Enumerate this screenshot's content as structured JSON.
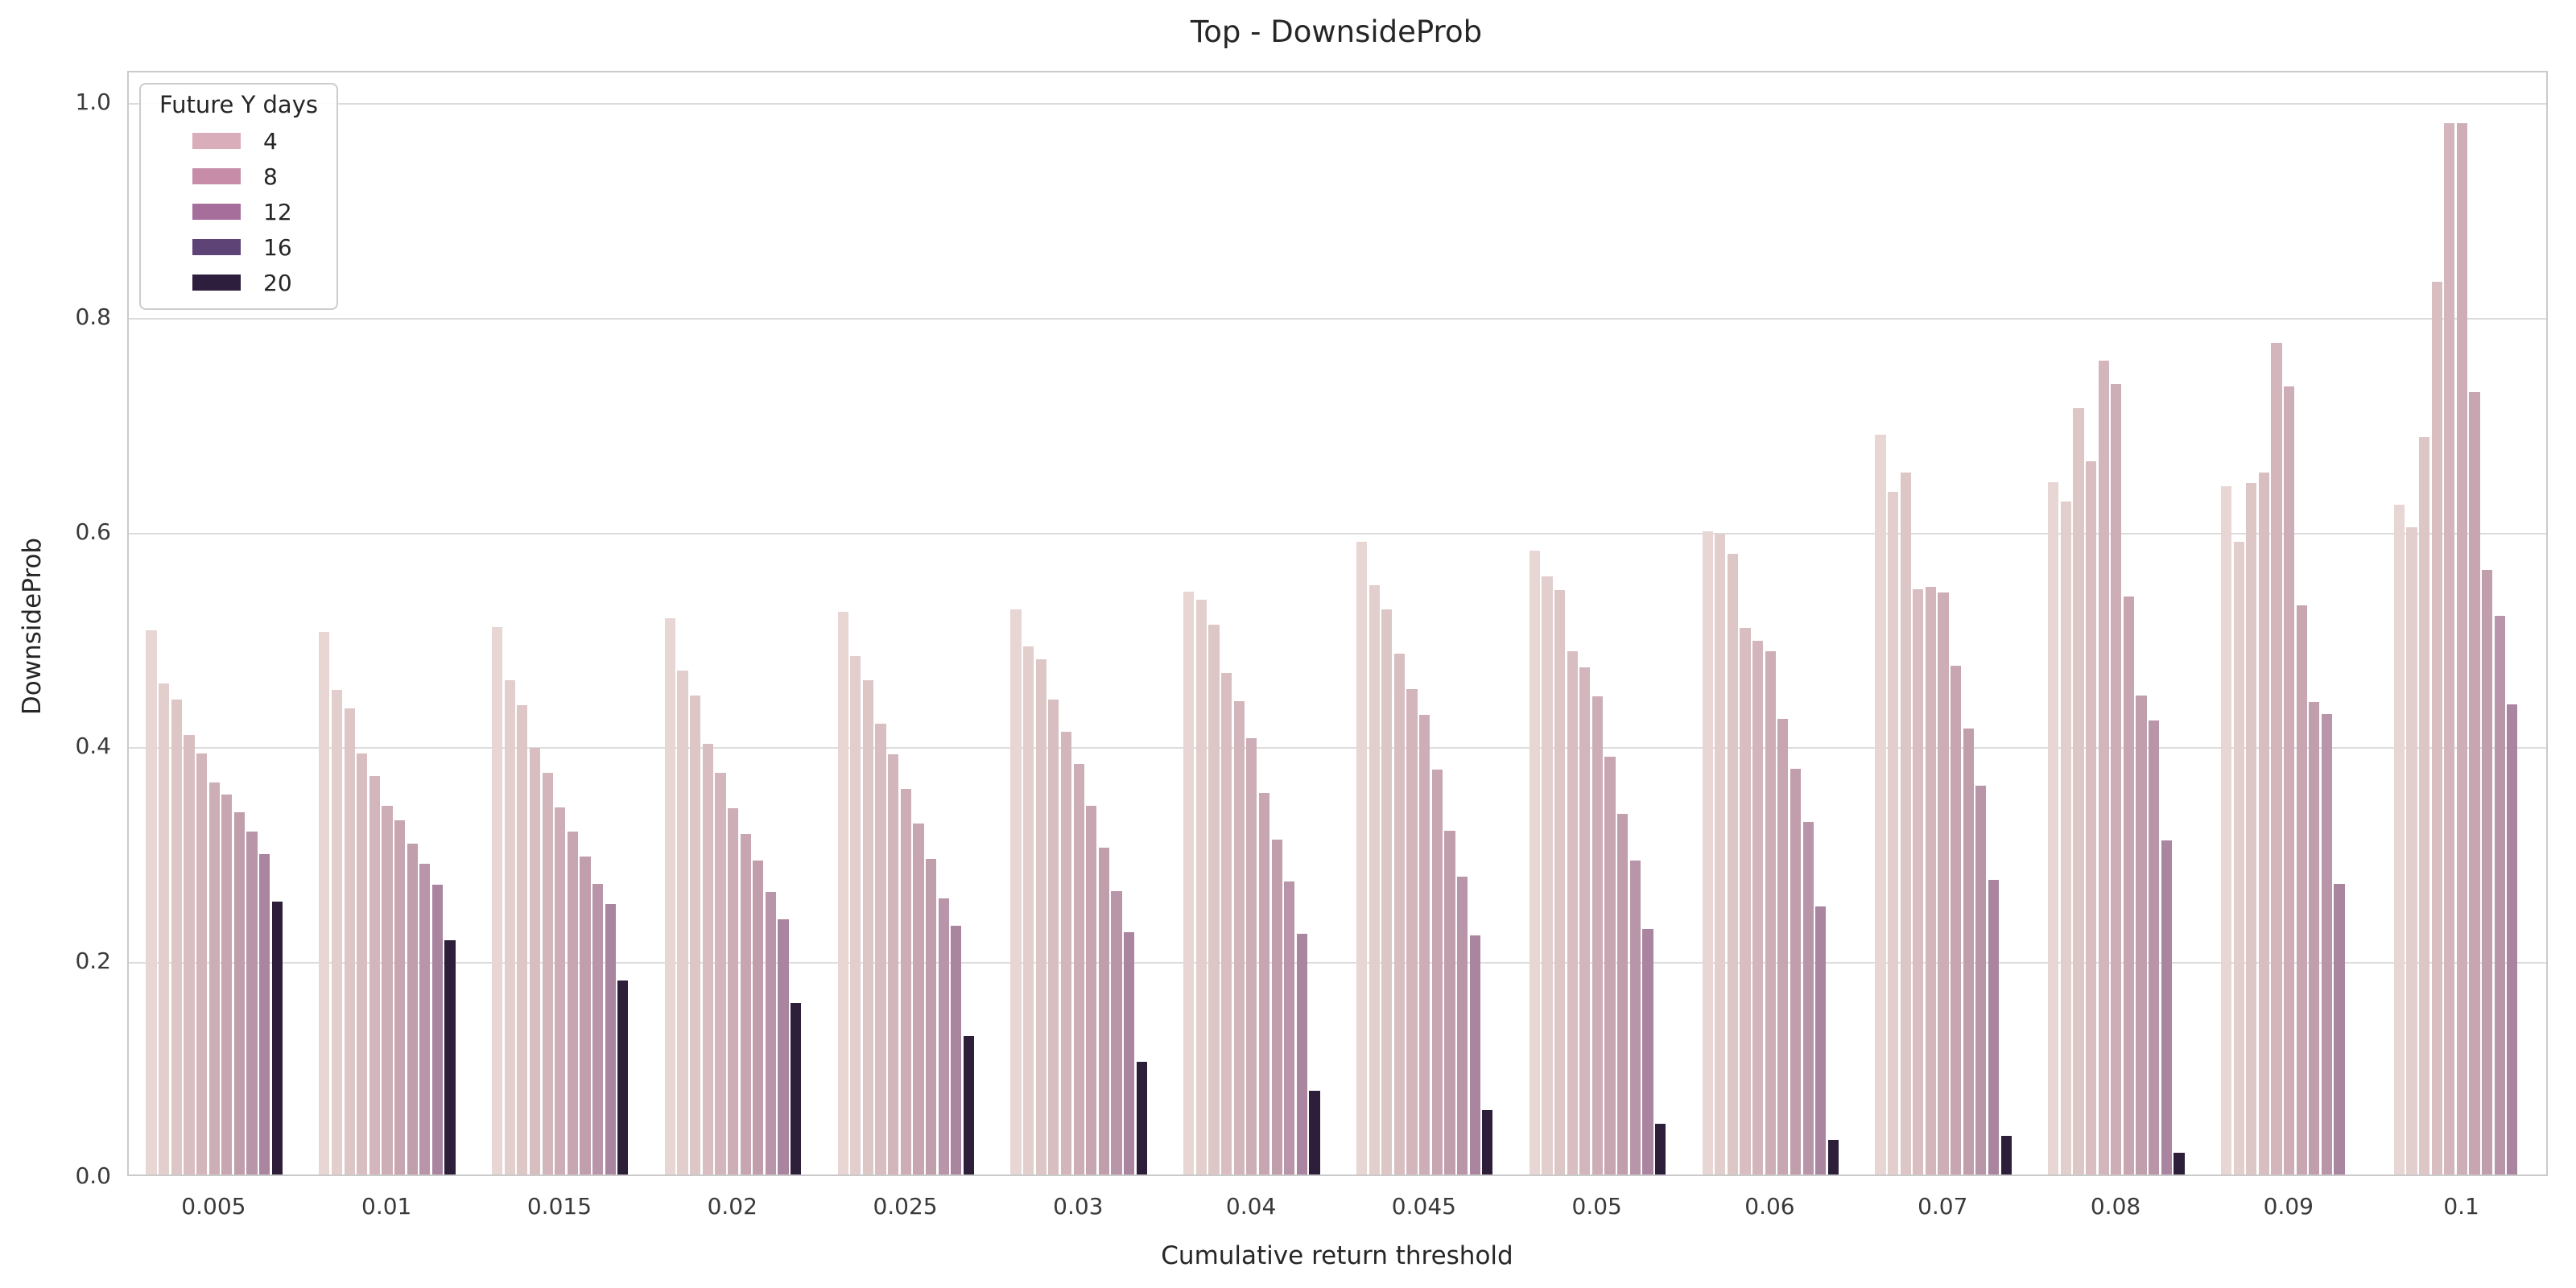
{
  "chart_data": {
    "type": "bar",
    "title": "Top - DownsideProb",
    "xlabel": "Cumulative return threshold",
    "ylabel": "DownsideProb",
    "categories": [
      "0.005",
      "0.01",
      "0.015",
      "0.02",
      "0.025",
      "0.03",
      "0.04",
      "0.045",
      "0.05",
      "0.06",
      "0.07",
      "0.08",
      "0.09",
      "0.1"
    ],
    "y_ticks": [
      "0.0",
      "0.2",
      "0.4",
      "0.6",
      "0.8",
      "1.0"
    ],
    "ylim": [
      0,
      1.03
    ],
    "grid": true,
    "legend": {
      "title": "Future Y days",
      "position": "upper-left",
      "entries": [
        {
          "label": "4",
          "color": "#d9adb9"
        },
        {
          "label": "8",
          "color": "#c78ca7"
        },
        {
          "label": "12",
          "color": "#a66e9a"
        },
        {
          "label": "16",
          "color": "#5e4377"
        },
        {
          "label": "20",
          "color": "#2d1e3e"
        }
      ]
    },
    "series": [
      {
        "name": "bar_1",
        "color": "#e7d6d3",
        "values": [
          0.507,
          0.505,
          0.51,
          0.518,
          0.524,
          0.526,
          0.543,
          0.589,
          0.581,
          0.599,
          0.689,
          0.645,
          0.641,
          0.624
        ]
      },
      {
        "name": "bar_2",
        "color": "#e2cecc",
        "values": [
          0.457,
          0.451,
          0.46,
          0.469,
          0.483,
          0.492,
          0.535,
          0.549,
          0.557,
          0.597,
          0.636,
          0.627,
          0.589,
          0.603
        ]
      },
      {
        "name": "bar_3",
        "color": "#ddc6c6",
        "values": [
          0.442,
          0.434,
          0.437,
          0.446,
          0.46,
          0.48,
          0.512,
          0.526,
          0.544,
          0.578,
          0.654,
          0.714,
          0.644,
          0.687
        ]
      },
      {
        "name": "bar_4",
        "color": "#d9bec1",
        "values": [
          0.409,
          0.392,
          0.397,
          0.401,
          0.42,
          0.442,
          0.467,
          0.485,
          0.487,
          0.509,
          0.545,
          0.664,
          0.654,
          0.831
        ]
      },
      {
        "name": "bar_5",
        "color": "#d3b6bc",
        "values": [
          0.392,
          0.371,
          0.374,
          0.374,
          0.391,
          0.412,
          0.441,
          0.452,
          0.472,
          0.497,
          0.547,
          0.758,
          0.774,
          0.979
        ]
      },
      {
        "name": "bar_6",
        "color": "#cdaeb6",
        "values": [
          0.365,
          0.343,
          0.342,
          0.341,
          0.359,
          0.382,
          0.406,
          0.428,
          0.445,
          0.487,
          0.542,
          0.736,
          0.734,
          0.979
        ]
      },
      {
        "name": "bar_7",
        "color": "#c7a6b1",
        "values": [
          0.354,
          0.33,
          0.319,
          0.317,
          0.327,
          0.343,
          0.355,
          0.377,
          0.389,
          0.424,
          0.474,
          0.538,
          0.53,
          0.729
        ]
      },
      {
        "name": "bar_8",
        "color": "#c09eac",
        "values": [
          0.337,
          0.308,
          0.296,
          0.292,
          0.294,
          0.304,
          0.312,
          0.32,
          0.336,
          0.378,
          0.415,
          0.446,
          0.44,
          0.563
        ]
      },
      {
        "name": "bar_9",
        "color": "#b895a8",
        "values": [
          0.319,
          0.289,
          0.271,
          0.263,
          0.257,
          0.264,
          0.273,
          0.277,
          0.292,
          0.328,
          0.362,
          0.423,
          0.429,
          0.52
        ]
      },
      {
        "name": "bar_10",
        "color": "#aa85a0",
        "values": [
          0.298,
          0.27,
          0.252,
          0.238,
          0.232,
          0.226,
          0.224,
          0.223,
          0.229,
          0.25,
          0.274,
          0.311,
          0.271,
          0.438
        ]
      },
      {
        "name": "bar_11",
        "color": "#2d1f39",
        "values": [
          0.254,
          0.218,
          0.181,
          0.16,
          0.129,
          0.105,
          0.078,
          0.06,
          0.047,
          0.032,
          0.036,
          0.02,
          0.0,
          0.0
        ]
      }
    ]
  }
}
